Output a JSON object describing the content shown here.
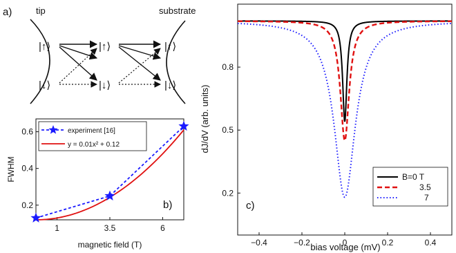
{
  "panel_a": {
    "label": "a)",
    "tip_label": "tip",
    "substrate_label": "substrate",
    "ket_up": "|↑⟩",
    "ket_down": "|↓⟩"
  },
  "chart_data": [
    {
      "id": "panel_b",
      "type": "line",
      "panel_label": "b)",
      "xlabel": "magnetic field (T)",
      "ylabel": "FWHM",
      "xlim": [
        0,
        7
      ],
      "ylim": [
        0.12,
        0.67
      ],
      "xticks": [
        1,
        3.5,
        6
      ],
      "yticks": [
        0.2,
        0.4,
        0.6
      ],
      "legend_position": "top-left",
      "series": [
        {
          "name": "experiment [16]",
          "style": "dashed-star",
          "color": "#1a1aff",
          "x": [
            0,
            3.5,
            7
          ],
          "y": [
            0.13,
            0.25,
            0.63
          ]
        },
        {
          "name": "y = 0.01x² + 0.12",
          "style": "solid",
          "color": "#e01010",
          "fit": {
            "a": 0.01,
            "c": 0.12
          }
        }
      ]
    },
    {
      "id": "panel_c",
      "type": "line",
      "panel_label": "c)",
      "xlabel": "bias voltage (mV)",
      "ylabel": "dJ/dV (arb. units)",
      "xlim": [
        -0.5,
        0.5
      ],
      "ylim": [
        0.0,
        1.1
      ],
      "xticks": [
        -0.4,
        -0.2,
        0,
        0.2,
        0.4
      ],
      "yticks": [
        0.2,
        0.5,
        0.8
      ],
      "legend_position": "bottom-right",
      "baseline": 1.02,
      "series": [
        {
          "name": "B=0 T",
          "style": "solid",
          "color": "#000000",
          "min": 0.54,
          "width": 0.012
        },
        {
          "name": "3.5",
          "style": "dashed",
          "color": "#e01010",
          "min": 0.45,
          "width": 0.025
        },
        {
          "name": "7",
          "style": "dotted",
          "color": "#1a1aff",
          "min": 0.18,
          "width": 0.06
        }
      ]
    }
  ]
}
